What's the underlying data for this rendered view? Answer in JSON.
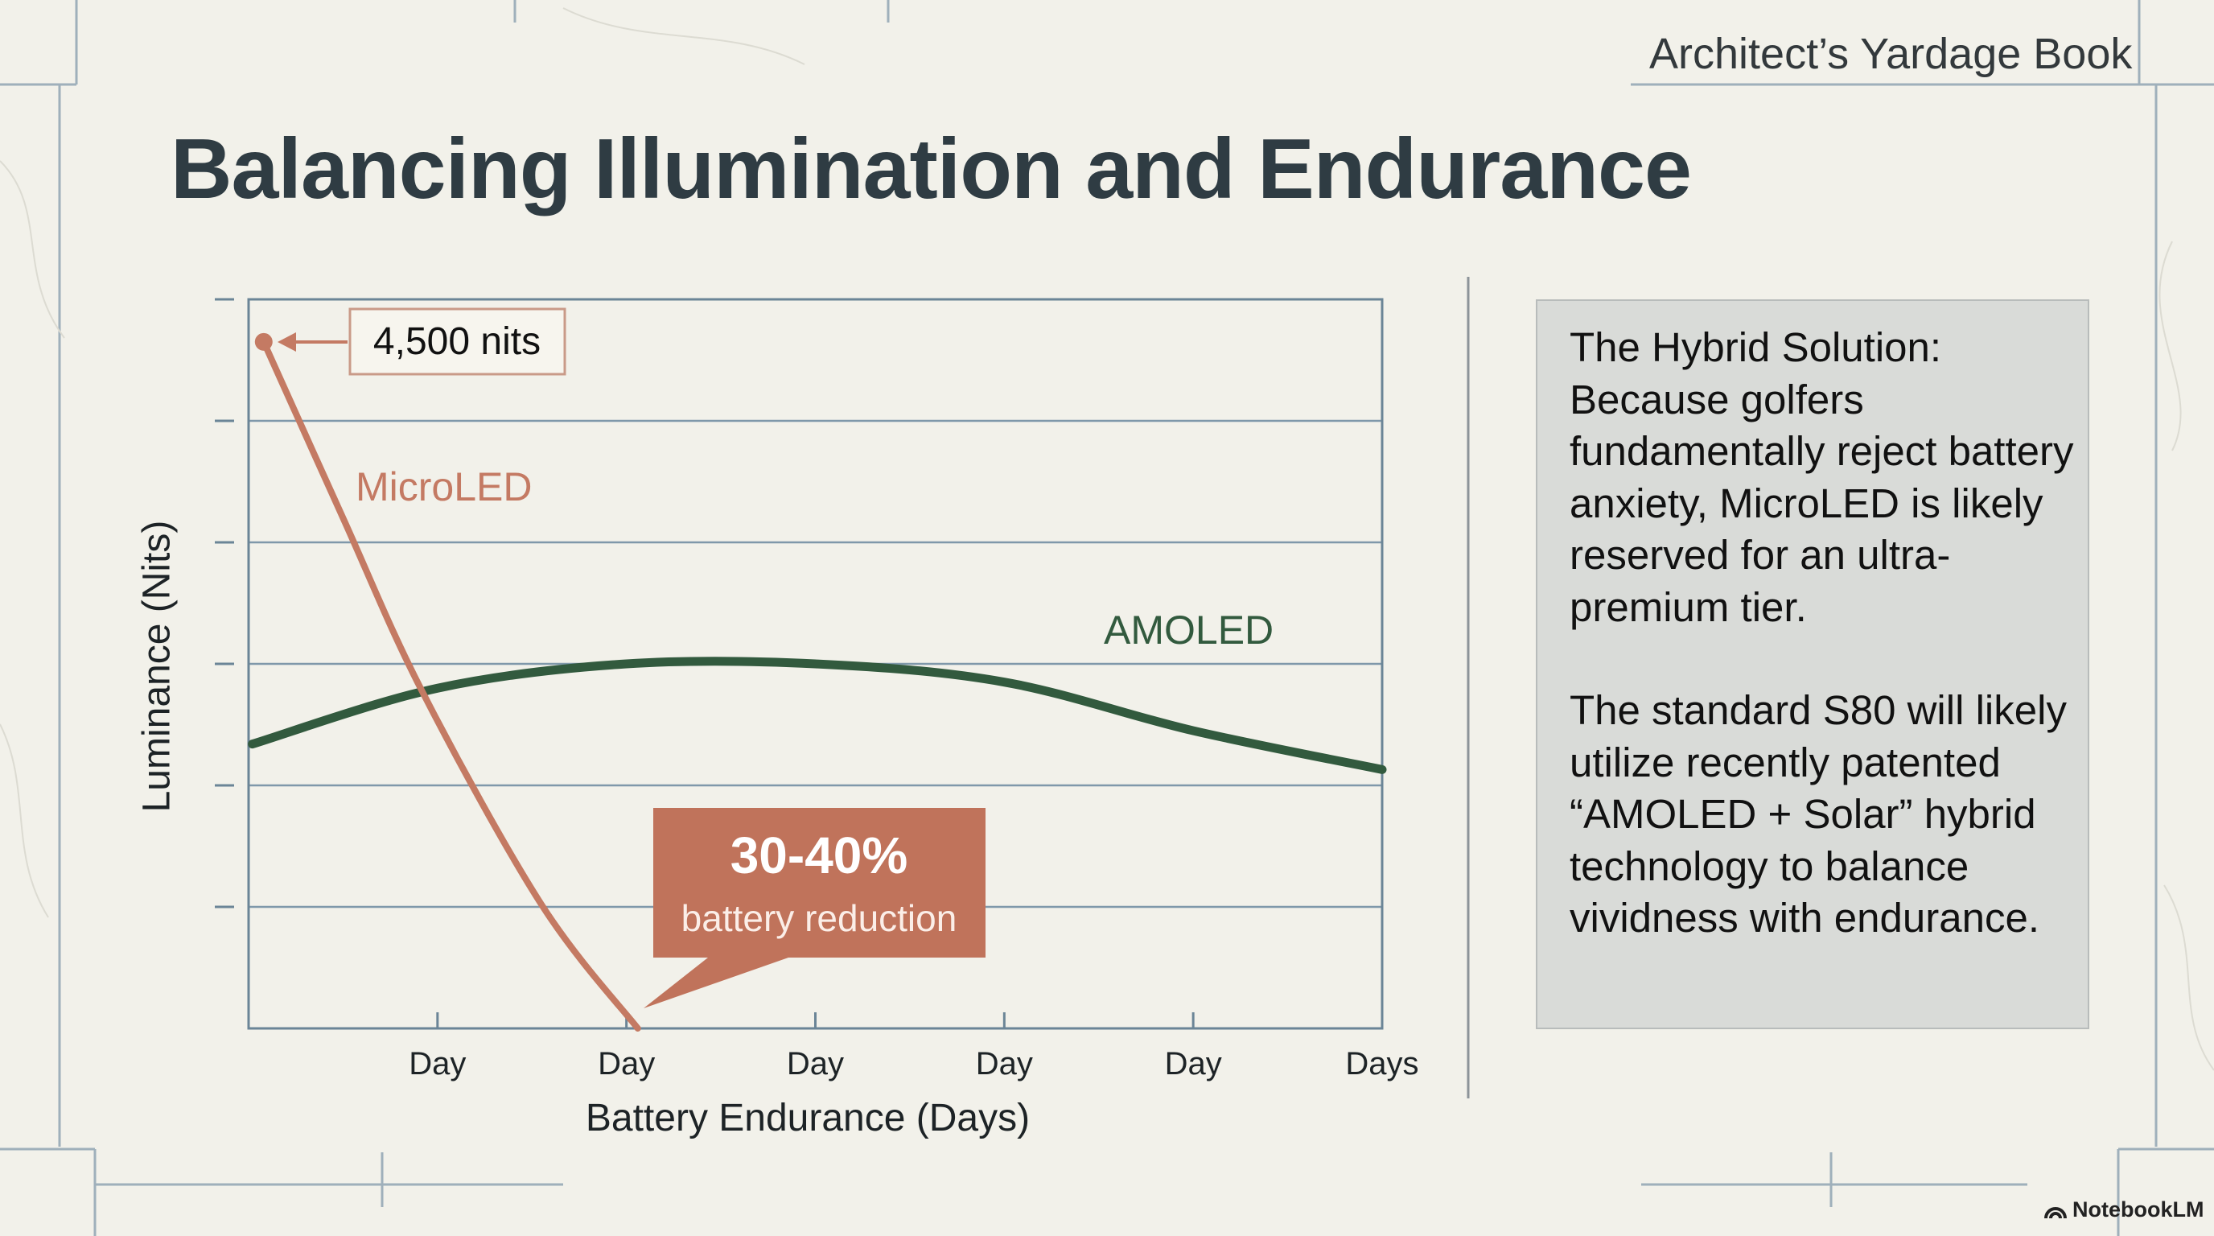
{
  "header": {
    "brand": "Architect’s Yardage Book",
    "title": "Balancing Illumination and Endurance"
  },
  "chart_data": {
    "type": "line",
    "title": "",
    "xlabel": "Battery Endurance (Days)",
    "ylabel": "Luminance (Nits)",
    "x_ticks": [
      1,
      2,
      3,
      4,
      5,
      6
    ],
    "x_tick_labels": [
      "Day",
      "Day",
      "Day",
      "Day",
      "Day",
      "Days"
    ],
    "xlim": [
      0,
      6
    ],
    "ylim": [
      0,
      6
    ],
    "grid": true,
    "y_tick_labels": [],
    "series": [
      {
        "name": "MicroLED",
        "color": "#c47a63",
        "x": [
          0.08,
          0.5,
          0.92,
          1.55,
          2.06
        ],
        "y": [
          5.65,
          4.2,
          2.77,
          1.02,
          0
        ]
      },
      {
        "name": "AMOLED",
        "color": "#325a3e",
        "x": [
          0.02,
          1,
          2,
          3,
          4,
          5,
          6
        ],
        "y": [
          2.34,
          2.8,
          3.0,
          3.0,
          2.85,
          2.45,
          2.13
        ]
      }
    ],
    "annotations": [
      {
        "label": "4,500 nits",
        "target_series": "MicroLED"
      },
      {
        "label": "30-40%",
        "sublabel": "battery reduction",
        "color": "#c0735b"
      }
    ]
  },
  "panel": {
    "paragraphs": [
      "The Hybrid Solution: Because golfers fundamentally reject battery anxiety, MicroLED is likely reserved for an ultra-premium tier.",
      "The standard S80 will likely utilize recently patented “AMOLED + Solar” hybrid technology to balance vividness with endurance."
    ]
  },
  "footer": {
    "logo": "NotebookLM"
  }
}
